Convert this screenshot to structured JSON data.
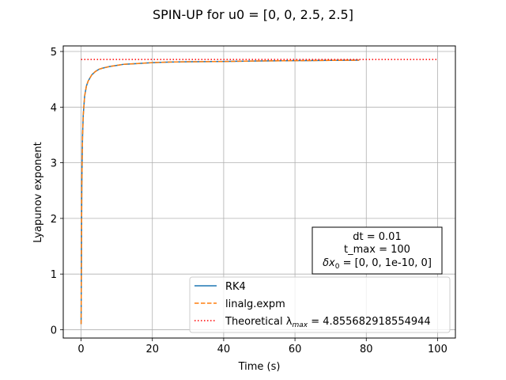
{
  "chart_data": {
    "type": "line",
    "title": "SPIN-UP for u0 = [0, 0, 2.5, 2.5]",
    "xlabel": "Time (s)",
    "ylabel": "Lyapunov exponent",
    "xlim": [
      -5,
      105
    ],
    "ylim": [
      -0.15,
      5.1
    ],
    "xticks": [
      0,
      20,
      40,
      60,
      80,
      100
    ],
    "yticks": [
      0,
      1,
      2,
      3,
      4,
      5
    ],
    "grid": true,
    "legend_position": "lower-right",
    "series": [
      {
        "name": "RK4",
        "style": "solid",
        "color": "#1f77b4",
        "x": [
          0.01,
          0.2,
          0.4,
          0.6,
          1.0,
          1.5,
          2,
          3,
          4,
          5,
          6,
          8,
          10,
          12,
          15,
          20,
          25,
          30,
          40,
          50,
          60,
          70,
          78
        ],
        "y": [
          0.1,
          2.6,
          3.45,
          3.85,
          4.2,
          4.38,
          4.47,
          4.58,
          4.64,
          4.68,
          4.7,
          4.73,
          4.75,
          4.77,
          4.78,
          4.8,
          4.81,
          4.815,
          4.82,
          4.83,
          4.835,
          4.84,
          4.843
        ]
      },
      {
        "name": "linalg.expm",
        "style": "dashed",
        "color": "#ff7f0e",
        "x": [
          0.01,
          0.2,
          0.4,
          0.6,
          1.0,
          1.5,
          2,
          3,
          4,
          5,
          6,
          8,
          10,
          12,
          15,
          20,
          25,
          30,
          40,
          50,
          60,
          70,
          78
        ],
        "y": [
          0.1,
          2.6,
          3.45,
          3.85,
          4.2,
          4.38,
          4.47,
          4.58,
          4.64,
          4.68,
          4.7,
          4.73,
          4.75,
          4.77,
          4.78,
          4.8,
          4.81,
          4.815,
          4.82,
          4.83,
          4.835,
          4.84,
          4.843
        ]
      },
      {
        "name_prefix": "Theoretical λ",
        "name_sub": "max",
        "name_suffix": " = 4.855682918554944",
        "style": "dotted",
        "color": "#ff0000",
        "x": [
          0,
          100
        ],
        "y": [
          4.855682918554944,
          4.855682918554944
        ]
      }
    ],
    "annotation": {
      "line1": "dt = 0.01",
      "line2": "t_max = 100",
      "line3_prefix": "δx",
      "line3_sub": "0",
      "line3_suffix": " = [0, 0, 1e-10, 0]"
    }
  }
}
